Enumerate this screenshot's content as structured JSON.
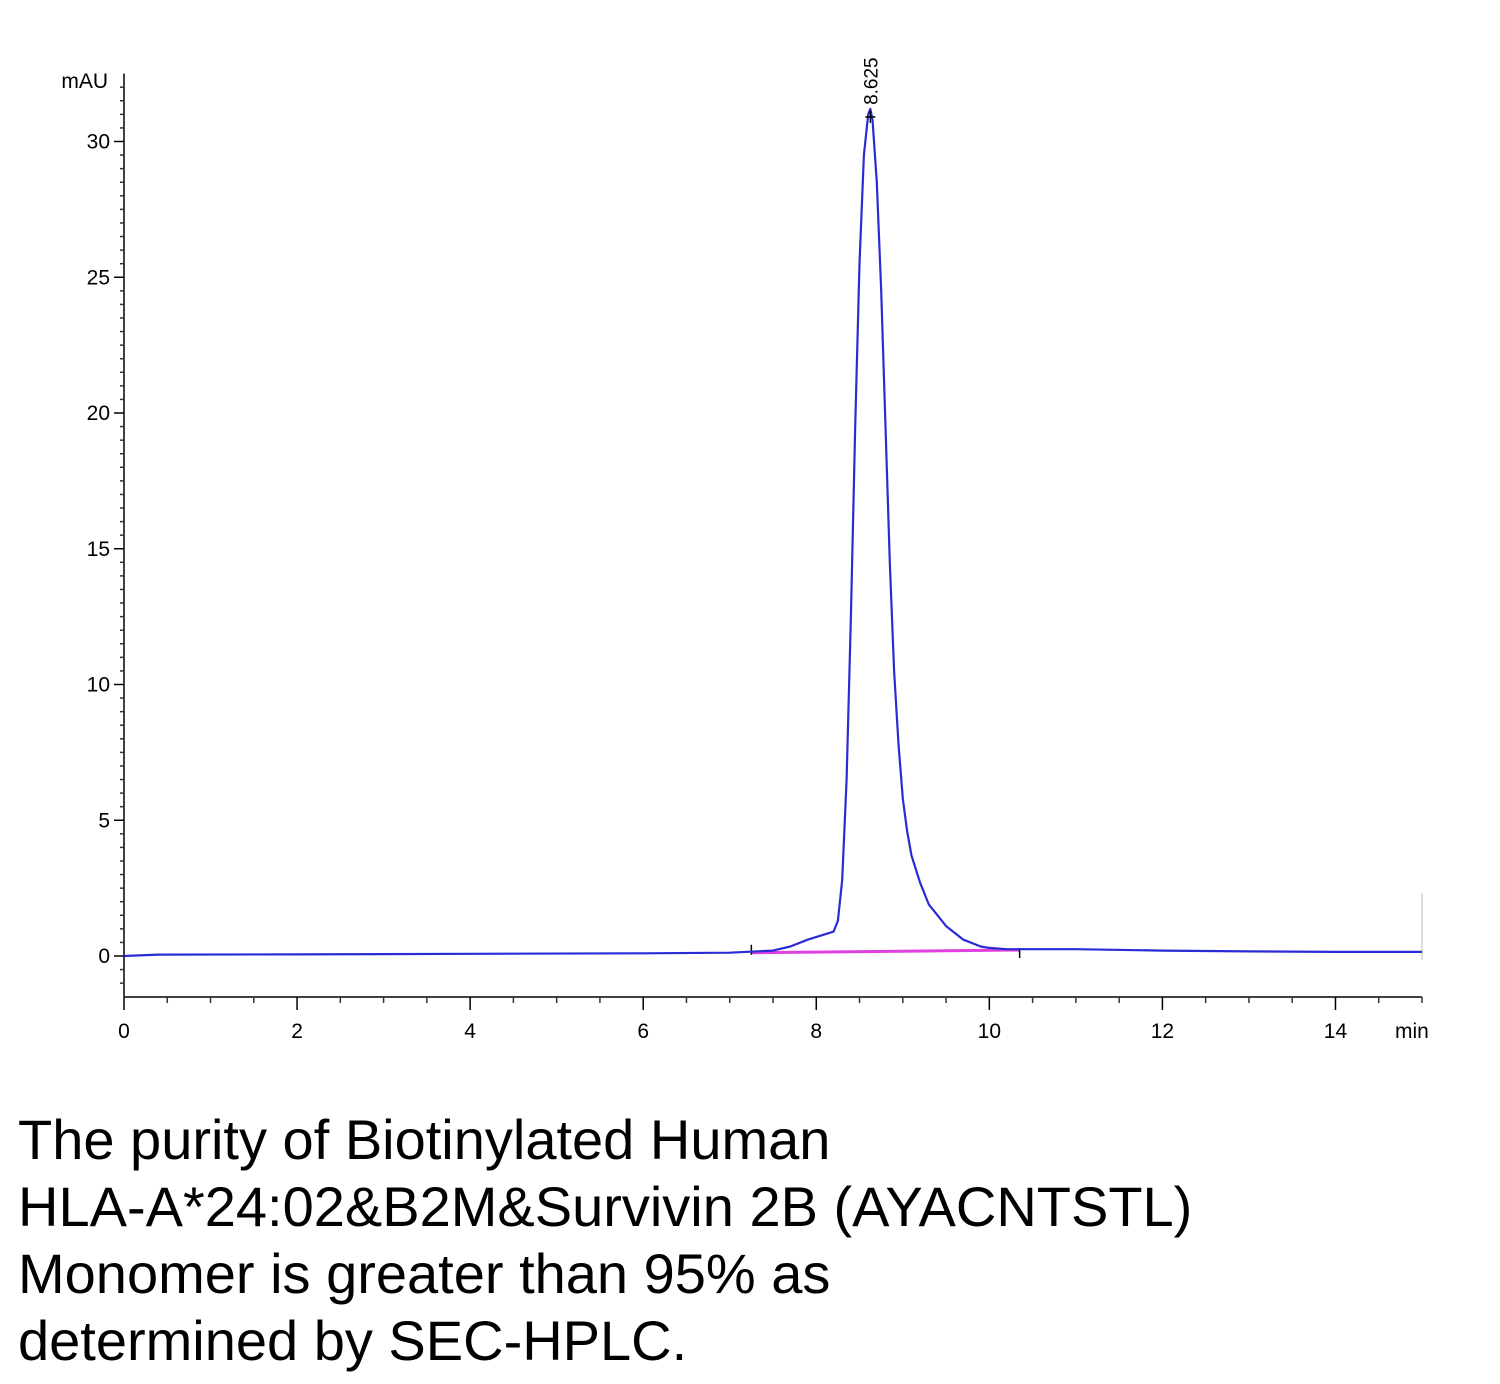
{
  "chart_data": {
    "type": "line",
    "title": "",
    "ylabel": "mAU",
    "xlabel": "min",
    "xlim": [
      0,
      15
    ],
    "ylim": [
      -1.5,
      32.5
    ],
    "x_ticks": [
      0,
      2,
      4,
      6,
      8,
      10,
      12,
      14
    ],
    "y_ticks": [
      0,
      5,
      10,
      15,
      20,
      25,
      30
    ],
    "grid": false,
    "series": [
      {
        "color": "#2b2bd6",
        "x": [
          0,
          0.4,
          2,
          4,
          6,
          7,
          7.5,
          7.7,
          7.9,
          8.1,
          8.2,
          8.25,
          8.3,
          8.35,
          8.4,
          8.45,
          8.5,
          8.55,
          8.6,
          8.625,
          8.65,
          8.7,
          8.75,
          8.8,
          8.85,
          8.9,
          8.95,
          9.0,
          9.05,
          9.1,
          9.2,
          9.3,
          9.5,
          9.7,
          9.9,
          10.0,
          10.2,
          11,
          12,
          13,
          14,
          15
        ],
        "y": [
          0.0,
          0.05,
          0.06,
          0.08,
          0.1,
          0.12,
          0.2,
          0.35,
          0.6,
          0.8,
          0.9,
          1.3,
          2.8,
          6.5,
          12.5,
          19.5,
          25.5,
          29.5,
          31.0,
          31.2,
          30.8,
          28.5,
          24.5,
          19.5,
          14.5,
          10.5,
          7.8,
          5.8,
          4.6,
          3.7,
          2.7,
          1.9,
          1.1,
          0.6,
          0.35,
          0.3,
          0.25,
          0.25,
          0.2,
          0.17,
          0.15,
          0.15
        ]
      }
    ],
    "baseline": {
      "color": "#e040e0",
      "x": [
        7.25,
        10.35
      ],
      "y": [
        0.12,
        0.22
      ]
    },
    "annotations": [
      {
        "text": "8.625",
        "x": 8.625,
        "y": 31.2
      }
    ]
  },
  "caption": {
    "lines": [
      "The purity of Biotinylated Human",
      "HLA-A*24:02&B2M&Survivin 2B (AYACNTSTL)",
      "Monomer is greater than 95% as",
      "determined by SEC-HPLC."
    ]
  }
}
